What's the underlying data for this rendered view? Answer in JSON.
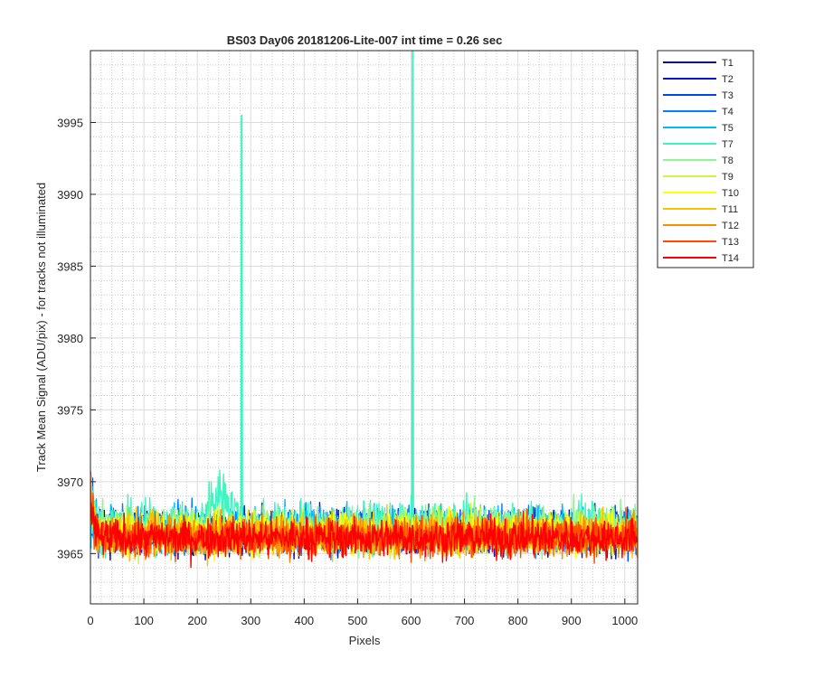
{
  "chart_data": {
    "type": "line",
    "title": "BS03 Day06 20181206-Lite-007 int time = 0.26 sec",
    "xlabel": "Pixels",
    "ylabel": "Track Mean Signal (ADU/pix) - for tracks not illuminated",
    "xlim": [
      0,
      1024
    ],
    "ylim": [
      3961.5,
      4000
    ],
    "xticks": [
      0,
      100,
      200,
      300,
      400,
      500,
      600,
      700,
      800,
      900,
      1000
    ],
    "yticks": [
      3965,
      3970,
      3975,
      3980,
      3985,
      3990,
      3995
    ],
    "grid": true,
    "minor_grid": true,
    "legend_position": "outside-top-right",
    "n_pixels": 1024,
    "baseline_level": 3966.3,
    "series": [
      {
        "name": "T1",
        "color": "#0a0a8c",
        "baseline": 3966.4,
        "noise": 1.3
      },
      {
        "name": "T2",
        "color": "#0018c8",
        "baseline": 3966.5,
        "noise": 1.3
      },
      {
        "name": "T3",
        "color": "#0046e6",
        "baseline": 3966.6,
        "noise": 1.3
      },
      {
        "name": "T4",
        "color": "#0080ff",
        "baseline": 3966.6,
        "noise": 1.4
      },
      {
        "name": "T5",
        "color": "#00b8ff",
        "baseline": 3966.7,
        "noise": 1.4
      },
      {
        "name": "T7",
        "color": "#3cf5c0",
        "baseline": 3966.9,
        "noise": 1.5,
        "features": [
          {
            "type": "bump",
            "x_range": [
              200,
              290
            ],
            "level": 3969.8
          },
          {
            "type": "spike",
            "x": 283,
            "y": 3995.5
          },
          {
            "type": "spike",
            "x": 603,
            "y": 4000
          }
        ]
      },
      {
        "name": "T8",
        "color": "#90f590",
        "baseline": 3966.8,
        "noise": 1.4
      },
      {
        "name": "T9",
        "color": "#c8fa3c",
        "baseline": 3966.5,
        "noise": 1.3
      },
      {
        "name": "T10",
        "color": "#ffff00",
        "baseline": 3966.4,
        "noise": 1.3
      },
      {
        "name": "T11",
        "color": "#ffc000",
        "baseline": 3966.3,
        "noise": 1.3
      },
      {
        "name": "T12",
        "color": "#ff8c00",
        "baseline": 3966.2,
        "noise": 1.2
      },
      {
        "name": "T13",
        "color": "#ff4a00",
        "baseline": 3966.2,
        "noise": 1.2
      },
      {
        "name": "T14",
        "color": "#ff0000",
        "baseline": 3966.1,
        "noise": 1.2
      }
    ]
  }
}
